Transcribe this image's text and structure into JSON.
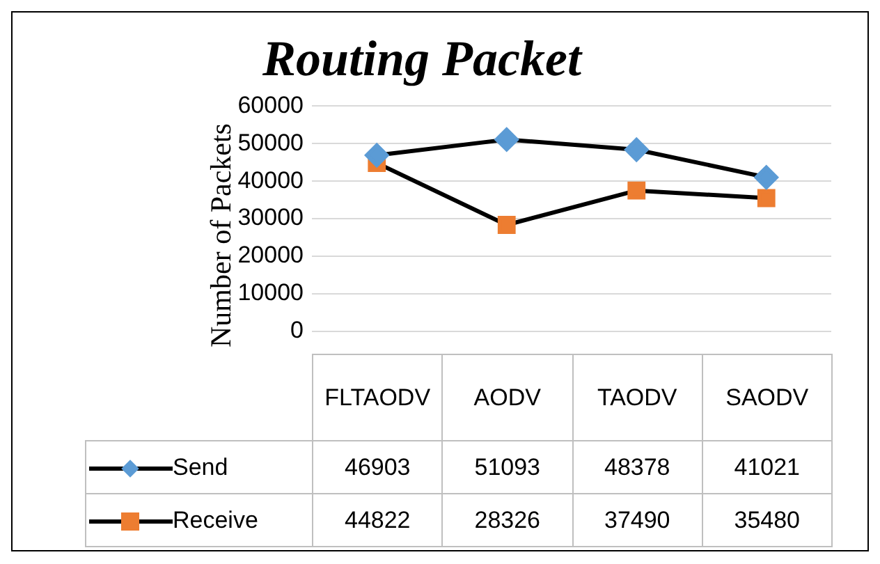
{
  "chart_data": {
    "type": "line",
    "title": "Routing Packet",
    "ylabel": "Number of Packets",
    "categories": [
      "FLTAODV",
      "AODV",
      "TAODV",
      "SAODV"
    ],
    "series": [
      {
        "name": "Send",
        "color": "#5b9bd5",
        "marker": "diamond",
        "values": [
          46903,
          51093,
          48378,
          41021
        ]
      },
      {
        "name": "Receive",
        "color": "#ed7d31",
        "marker": "square",
        "values": [
          44822,
          28326,
          37490,
          35480
        ]
      }
    ],
    "ylim": [
      0,
      60000
    ],
    "yticks": [
      0,
      10000,
      20000,
      30000,
      40000,
      50000,
      60000
    ],
    "grid": "y",
    "legend": "bottom",
    "data_labels": true
  }
}
